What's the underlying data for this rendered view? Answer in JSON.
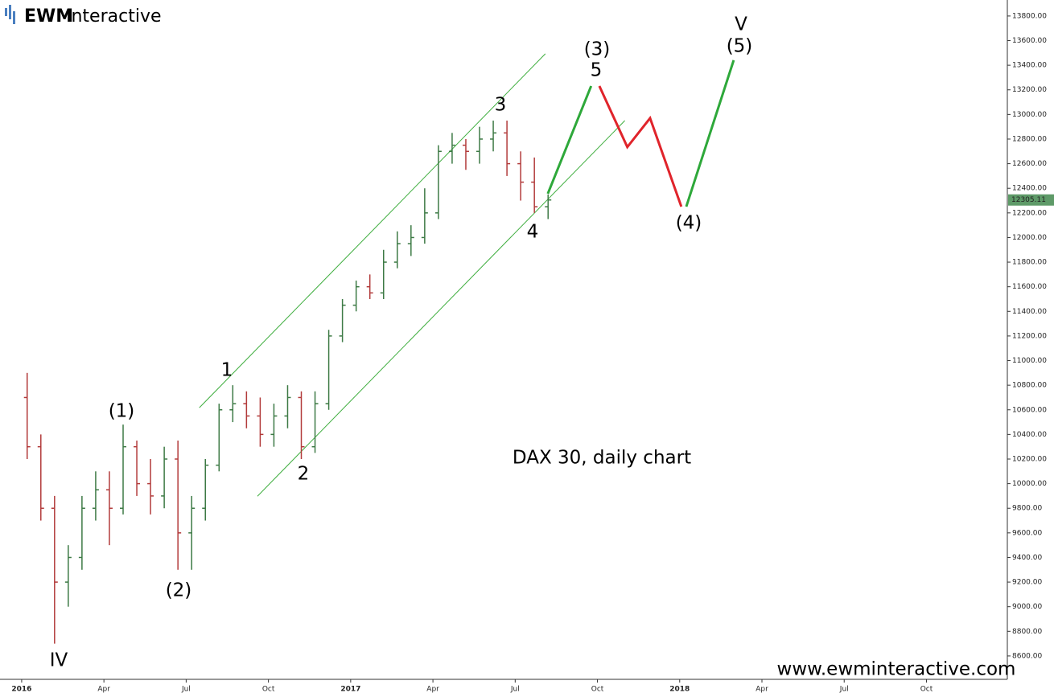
{
  "logo": [
    "EWM",
    "Interactive"
  ],
  "chart_data": {
    "type": "candlestick",
    "x": [
      0.2,
      0.7,
      1.2,
      1.7,
      2.2,
      2.7,
      3.2,
      3.7,
      4.2,
      4.7,
      5.2,
      5.7,
      6.2,
      6.7,
      7.2,
      7.7,
      8.2,
      8.7,
      9.2,
      9.7,
      10.2,
      10.7,
      11.2,
      11.7,
      12.2,
      12.7,
      13.2,
      13.7,
      14.2,
      14.7,
      15.2,
      15.7,
      16.2,
      16.7,
      17.2,
      17.7,
      18.2,
      18.7,
      19.2
    ],
    "open": [
      10700,
      10300,
      9800,
      9200,
      9400,
      9800,
      9950,
      9800,
      10300,
      10000,
      9900,
      10200,
      9600,
      9800,
      10150,
      10600,
      10650,
      10550,
      10400,
      10550,
      10700,
      10300,
      10650,
      11200,
      11450,
      11600,
      11550,
      11800,
      11950,
      12000,
      12200,
      12700,
      12750,
      12700,
      12800,
      12850,
      12600,
      12450,
      12250
    ],
    "high": [
      10900,
      10400,
      9900,
      9500,
      9900,
      10100,
      10100,
      10480,
      10350,
      10200,
      10300,
      10350,
      9900,
      10200,
      10650,
      10800,
      10750,
      10700,
      10650,
      10800,
      10750,
      10750,
      11250,
      11500,
      11650,
      11700,
      11900,
      12050,
      12100,
      12400,
      12750,
      12850,
      12800,
      12900,
      12950,
      12950,
      12700,
      12650,
      12350
    ],
    "low": [
      10200,
      9700,
      8700,
      9000,
      9300,
      9700,
      9500,
      9750,
      9900,
      9750,
      9800,
      9300,
      9300,
      9700,
      10100,
      10500,
      10450,
      10300,
      10300,
      10450,
      10200,
      10250,
      10600,
      11150,
      11400,
      11500,
      11500,
      11750,
      11850,
      11950,
      12150,
      12600,
      12550,
      12600,
      12700,
      12500,
      12300,
      12200,
      12150
    ],
    "close": [
      10300,
      9800,
      9200,
      9400,
      9800,
      9950,
      9800,
      10300,
      10000,
      9900,
      10200,
      9600,
      9800,
      10150,
      10600,
      10650,
      10550,
      10400,
      10550,
      10700,
      10300,
      10650,
      11200,
      11450,
      11600,
      11550,
      11800,
      11950,
      12000,
      12200,
      12700,
      12750,
      12700,
      12800,
      12850,
      12600,
      12450,
      12250,
      12305.11
    ],
    "up_color": "#3d7a45",
    "down_color": "#b23b3b",
    "last_price": 12305.11,
    "last_price_color": "#5e9a68",
    "channels": [
      {
        "x": [
          6.48,
          19.1
        ],
        "values": [
          10617,
          13493
        ],
        "color": "#3fae3f"
      },
      {
        "x": [
          8.6,
          22.0
        ],
        "values": [
          9898,
          12950
        ],
        "color": "#3fae3f"
      }
    ],
    "projection": [
      {
        "x": [
          19.19,
          20.77
        ],
        "values": [
          12356,
          13231
        ],
        "color": "#2ea83a"
      },
      {
        "x": [
          21.07,
          22.09,
          22.92,
          24.06
        ],
        "values": [
          13231,
          12735,
          12970,
          12251
        ],
        "color": "#e0242b"
      },
      {
        "x": [
          24.24,
          25.97
        ],
        "values": [
          12251,
          13441
        ],
        "color": "#2ea83a"
      }
    ],
    "annotations": [
      "IV",
      "(1)",
      "(2)",
      "1",
      "2",
      "3",
      "4",
      "(3)",
      "5",
      "V",
      "(5)",
      "(4)",
      "DAX 30, daily chart",
      "www.ewminteractive.com"
    ],
    "xlim": [
      -0.79,
      35.95
    ],
    "xticks": [
      {
        "value": 0,
        "label": "2016"
      },
      {
        "value": 3,
        "label": "Apr"
      },
      {
        "value": 6,
        "label": "Jul"
      },
      {
        "value": 9,
        "label": "Oct"
      },
      {
        "value": 12,
        "label": "2017"
      },
      {
        "value": 15,
        "label": "Apr"
      },
      {
        "value": 18,
        "label": "Jul"
      },
      {
        "value": 21,
        "label": "Oct"
      },
      {
        "value": 24,
        "label": "2018"
      },
      {
        "value": 27,
        "label": "Apr"
      },
      {
        "value": 30,
        "label": "Jul"
      },
      {
        "value": 33,
        "label": "Oct"
      }
    ],
    "ylim": [
      8410,
      13930
    ],
    "yticks": [
      {
        "value": 8600,
        "label": "8600.00"
      },
      {
        "value": 8800,
        "label": "8800.00"
      },
      {
        "value": 9000,
        "label": "9000.00"
      },
      {
        "value": 9200,
        "label": "9200.00"
      },
      {
        "value": 9400,
        "label": "9400.00"
      },
      {
        "value": 9600,
        "label": "9600.00"
      },
      {
        "value": 9800,
        "label": "9800.00"
      },
      {
        "value": 10000,
        "label": "10000.00"
      },
      {
        "value": 10200,
        "label": "10200.00"
      },
      {
        "value": 10400,
        "label": "10400.00"
      },
      {
        "value": 10600,
        "label": "10600.00"
      },
      {
        "value": 10800,
        "label": "10800.00"
      },
      {
        "value": 11000,
        "label": "11000.00"
      },
      {
        "value": 11200,
        "label": "11200.00"
      },
      {
        "value": 11400,
        "label": "11400.00"
      },
      {
        "value": 11600,
        "label": "11600.00"
      },
      {
        "value": 11800,
        "label": "11800.00"
      },
      {
        "value": 12000,
        "label": "12000.00"
      },
      {
        "value": 12200,
        "label": "12200.00"
      },
      {
        "value": 12400,
        "label": "12400.00"
      },
      {
        "value": 12600,
        "label": "12600.00"
      },
      {
        "value": 12800,
        "label": "12800.00"
      },
      {
        "value": 13000,
        "label": "13000.00"
      },
      {
        "value": 13200,
        "label": "13200.00"
      },
      {
        "value": 13400,
        "label": "13400.00"
      },
      {
        "value": 13600,
        "label": "13600.00"
      },
      {
        "value": 13800,
        "label": "13800.00"
      }
    ]
  }
}
